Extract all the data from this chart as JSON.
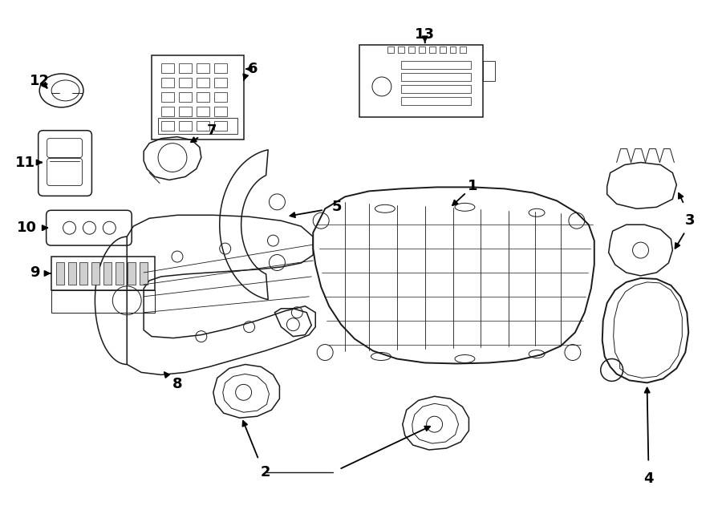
{
  "background_color": "#ffffff",
  "line_color": "#1a1a1a",
  "fig_width": 9.0,
  "fig_height": 6.61,
  "dpi": 100,
  "font_size": 13,
  "font_weight": "bold",
  "lw_thin": 0.7,
  "lw_med": 1.1,
  "lw_thick": 1.4
}
